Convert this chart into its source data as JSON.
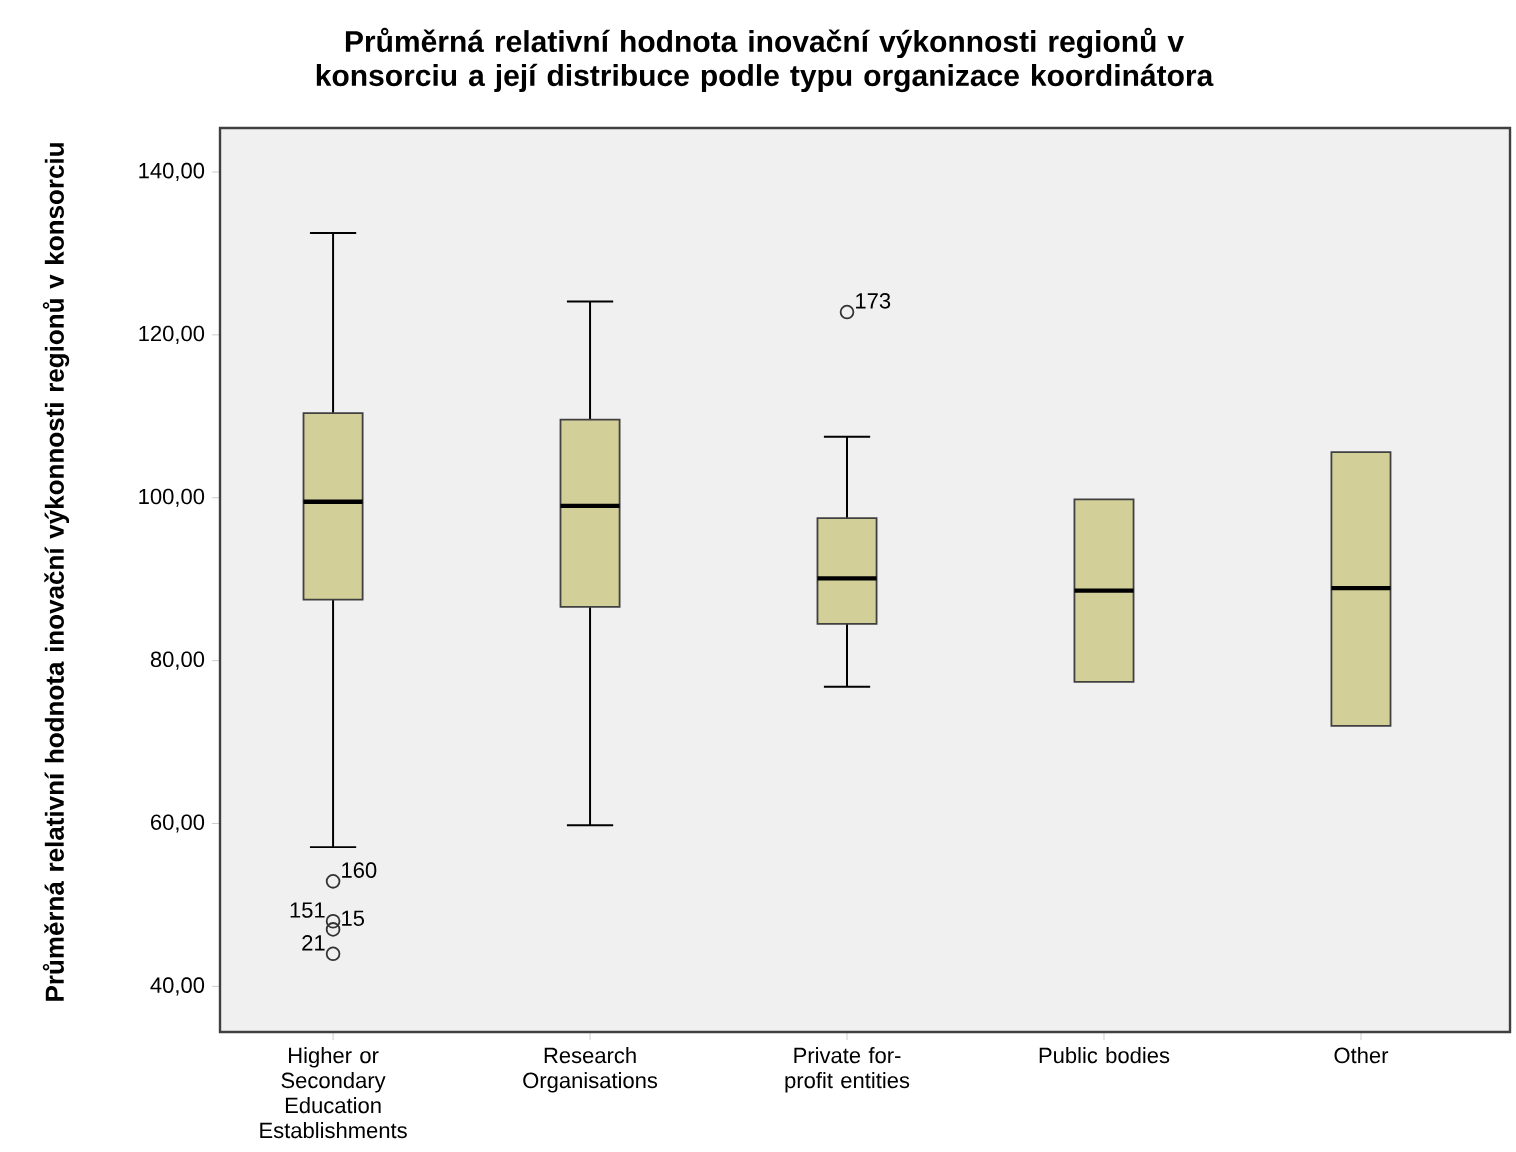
{
  "chart_data": {
    "type": "box",
    "title": "Průměrná relativní hodnota inovační výkonnosti regionů v konsorciu a její distribuce podle typu organizace koordinátora",
    "ylabel": "Průměrná relativní hodnota inovační výkonnosti regionů v konsorciu",
    "categories": [
      "Higher or Secondary Education Establishments",
      "Research Organisations",
      "Private for-profit entities",
      "Public bodies",
      "Other"
    ],
    "color": "#d3cf99",
    "boxes": [
      {
        "low": 57.1,
        "q1": 87.5,
        "median": 99.5,
        "q3": 110.4,
        "high": 132.5,
        "outliers": [
          52.9,
          48.0,
          47.0,
          44.0
        ]
      },
      {
        "low": 59.8,
        "q1": 86.6,
        "median": 99.0,
        "q3": 109.6,
        "high": 124.1
      },
      {
        "low": 76.8,
        "q1": 84.5,
        "median": 90.1,
        "q3": 97.5,
        "high": 107.5,
        "outliers": [
          122.8
        ]
      },
      {
        "low": 77.4,
        "q1": 77.4,
        "median": 88.6,
        "q3": 99.8,
        "high": 99.8
      },
      {
        "low": 72.0,
        "q1": 72.0,
        "median": 88.9,
        "q3": 105.6,
        "high": 105.6
      }
    ],
    "ylim": [
      34.4,
      145.4
    ],
    "yticks": [
      {
        "value": 40,
        "label": "40,00"
      },
      {
        "value": 60,
        "label": "60,00"
      },
      {
        "value": 80,
        "label": "80,00"
      },
      {
        "value": 100,
        "label": "100,00"
      },
      {
        "value": 120,
        "label": "120,00"
      },
      {
        "value": 140,
        "label": "140,00"
      }
    ],
    "marker": "circle",
    "grid": false,
    "annotations": [
      "160",
      "151",
      "15",
      "21",
      "173"
    ]
  }
}
